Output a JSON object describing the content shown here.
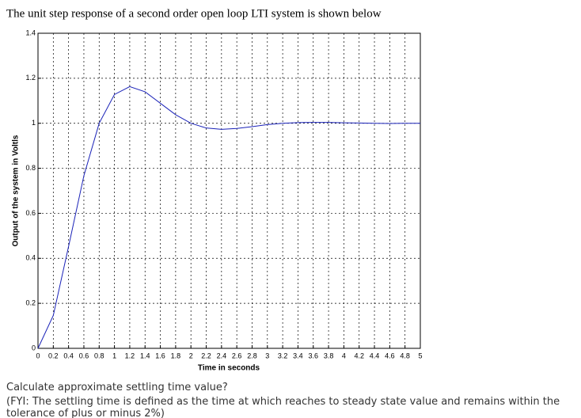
{
  "heading": "The unit step response of a second order open loop LTI system is shown below",
  "chart_data": {
    "type": "line",
    "xlabel": "Time in seconds",
    "ylabel": "Output of the system in Voltls",
    "x": [
      0,
      0.2,
      0.4,
      0.6,
      0.8,
      1,
      1.2,
      1.4,
      1.6,
      1.8,
      2,
      2.2,
      2.4,
      2.6,
      2.8,
      3,
      3.2,
      3.4,
      3.6,
      3.8,
      4,
      4.2,
      4.4,
      4.6,
      4.8,
      5
    ],
    "series": [
      {
        "color": "#1a22b8",
        "values": [
          0,
          0.146,
          0.453,
          0.767,
          1.0,
          1.128,
          1.163,
          1.14,
          1.089,
          1.038,
          1.0,
          0.979,
          0.973,
          0.977,
          0.985,
          0.994,
          1.0,
          1.003,
          1.004,
          1.004,
          1.002,
          1.001,
          1.0,
          0.999,
          1.0,
          1.0
        ]
      }
    ],
    "xlim": [
      0,
      5
    ],
    "xticks": [
      0,
      0.2,
      0.4,
      0.6,
      0.8,
      1,
      1.2,
      1.4,
      1.6,
      1.8,
      2,
      2.2,
      2.4,
      2.6,
      2.8,
      3,
      3.2,
      3.4,
      3.6,
      3.8,
      4,
      4.2,
      4.4,
      4.6,
      4.8,
      5
    ],
    "ylim": [
      0,
      1.4
    ],
    "yticks": [
      0,
      0.2,
      0.4,
      0.6,
      0.8,
      1,
      1.2,
      1.4
    ],
    "grid": true
  },
  "question": "Calculate approximate settling time value?",
  "note": "(FYI: The settling time is defined as the time at which reaches to steady state value and remains within the tolerance of plus or minus 2%)"
}
